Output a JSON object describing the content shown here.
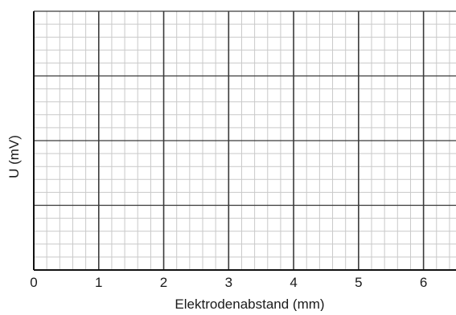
{
  "chart_data": {
    "type": "line",
    "title": "",
    "xlabel": "Elektrodenabstand (mm)",
    "ylabel": "U (mV)",
    "xlim": [
      0,
      6.5
    ],
    "ylim": [
      0,
      4
    ],
    "x_ticks": [
      {
        "value": 0,
        "label": "0"
      },
      {
        "value": 1,
        "label": "1"
      },
      {
        "value": 2,
        "label": "2"
      },
      {
        "value": 3,
        "label": "3"
      },
      {
        "value": 4,
        "label": "4"
      },
      {
        "value": 5,
        "label": "5"
      },
      {
        "value": 6,
        "label": "6"
      }
    ],
    "y_ticks": [],
    "grid": {
      "on": true,
      "minor_step_x": 0.2,
      "major_step_x": 1,
      "minor_step_y": 0.2,
      "major_step_y": 1
    },
    "series": []
  },
  "colors": {
    "minor_grid": "#c9c9c9",
    "major_grid": "#3a3a3a",
    "axis": "#111111"
  }
}
